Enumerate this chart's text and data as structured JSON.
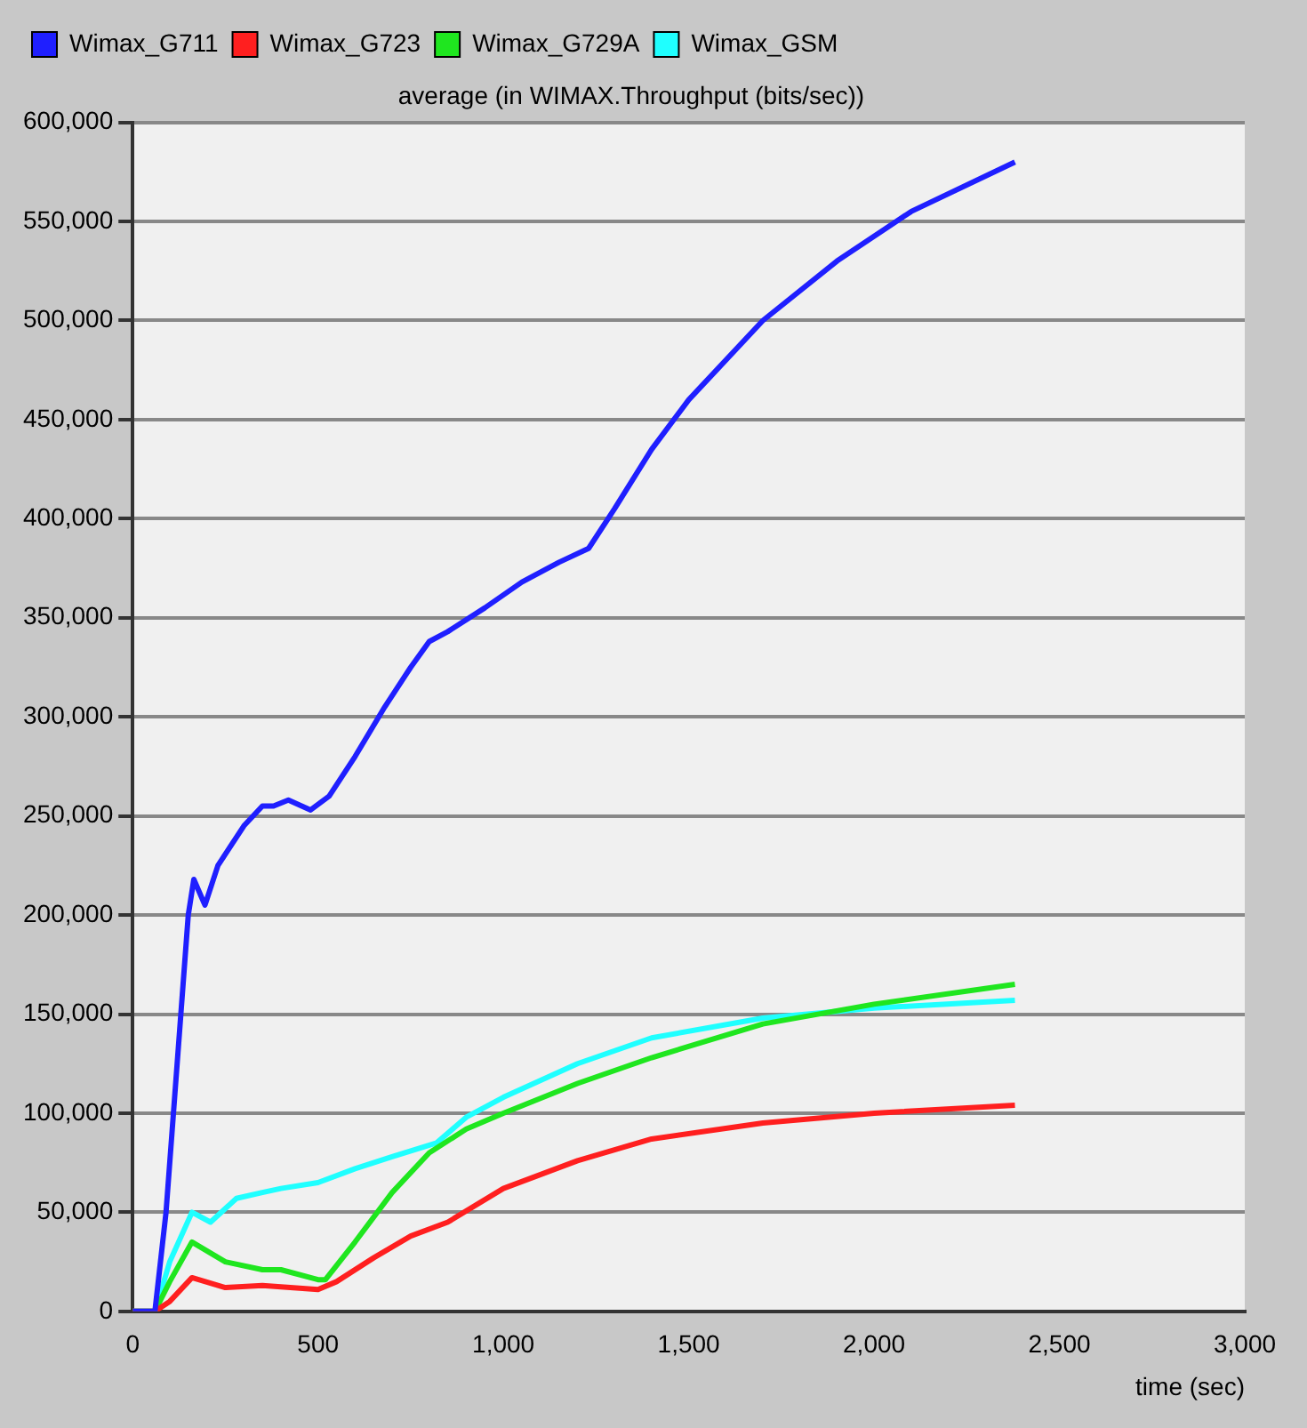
{
  "chart_data": {
    "type": "line",
    "title": "average (in WIMAX.Throughput (bits/sec))",
    "xlabel": "time (sec)",
    "xlim": [
      0,
      3000
    ],
    "xticks": [
      0,
      500,
      {
        "value": 1000,
        "label": "1,000"
      },
      {
        "value": 1500,
        "label": "1,500"
      },
      {
        "value": 2000,
        "label": "2,000"
      },
      {
        "value": 2500,
        "label": "2,500"
      },
      {
        "value": 3000,
        "label": "3,000"
      }
    ],
    "ylim": [
      0,
      600000
    ],
    "yticks": [
      0,
      {
        "value": 50000,
        "label": "50,000"
      },
      {
        "value": 100000,
        "label": "100,000"
      },
      {
        "value": 150000,
        "label": "150,000"
      },
      {
        "value": 200000,
        "label": "200,000"
      },
      {
        "value": 250000,
        "label": "250,000"
      },
      {
        "value": 300000,
        "label": "300,000"
      },
      {
        "value": 350000,
        "label": "350,000"
      },
      {
        "value": 400000,
        "label": "400,000"
      },
      {
        "value": 450000,
        "label": "450,000"
      },
      {
        "value": 500000,
        "label": "500,000"
      },
      {
        "value": 550000,
        "label": "550,000"
      },
      {
        "value": 600000,
        "label": "600,000"
      }
    ],
    "grid": "y",
    "legend": "top left",
    "marker": "none",
    "line_style": "solid",
    "series": [
      {
        "name": "Wimax_G711",
        "color": "#1f1fff",
        "x": [
          0,
          60,
          90,
          150,
          165,
          195,
          230,
          300,
          350,
          380,
          420,
          480,
          530,
          600,
          680,
          750,
          800,
          850,
          950,
          1050,
          1150,
          1230,
          1300,
          1400,
          1500,
          1700,
          1900,
          2100,
          2380
        ],
        "values": [
          0,
          0,
          50000,
          200000,
          218000,
          205000,
          225000,
          245000,
          255000,
          255000,
          258000,
          253000,
          260000,
          280000,
          305000,
          325000,
          338000,
          343000,
          355000,
          368000,
          378000,
          385000,
          405000,
          435000,
          460000,
          500000,
          530000,
          555000,
          580000
        ]
      },
      {
        "name": "Wimax_G723",
        "color": "#ff1f1f",
        "x": [
          0,
          60,
          100,
          160,
          250,
          350,
          500,
          550,
          650,
          750,
          850,
          1000,
          1200,
          1400,
          1700,
          2000,
          2380
        ],
        "values": [
          0,
          0,
          5000,
          17000,
          12000,
          13000,
          11000,
          15000,
          27000,
          38000,
          45000,
          62000,
          76000,
          87000,
          95000,
          100000,
          104000
        ]
      },
      {
        "name": "Wimax_G729A",
        "color": "#1fe61f",
        "x": [
          0,
          60,
          100,
          160,
          250,
          350,
          400,
          500,
          520,
          600,
          700,
          800,
          900,
          1000,
          1200,
          1400,
          1700,
          2000,
          2380
        ],
        "values": [
          0,
          0,
          15000,
          35000,
          25000,
          21000,
          21000,
          16000,
          16000,
          35000,
          60000,
          80000,
          92000,
          100000,
          115000,
          128000,
          145000,
          155000,
          165000
        ]
      },
      {
        "name": "Wimax_GSM",
        "color": "#1fffff",
        "x": [
          0,
          60,
          100,
          160,
          210,
          280,
          350,
          400,
          500,
          600,
          700,
          820,
          900,
          1000,
          1200,
          1400,
          1700,
          2000,
          2380
        ],
        "values": [
          0,
          0,
          25000,
          50000,
          45000,
          57000,
          60000,
          62000,
          65000,
          72000,
          78000,
          85000,
          98000,
          108000,
          125000,
          138000,
          148000,
          153000,
          157000
        ]
      }
    ]
  }
}
